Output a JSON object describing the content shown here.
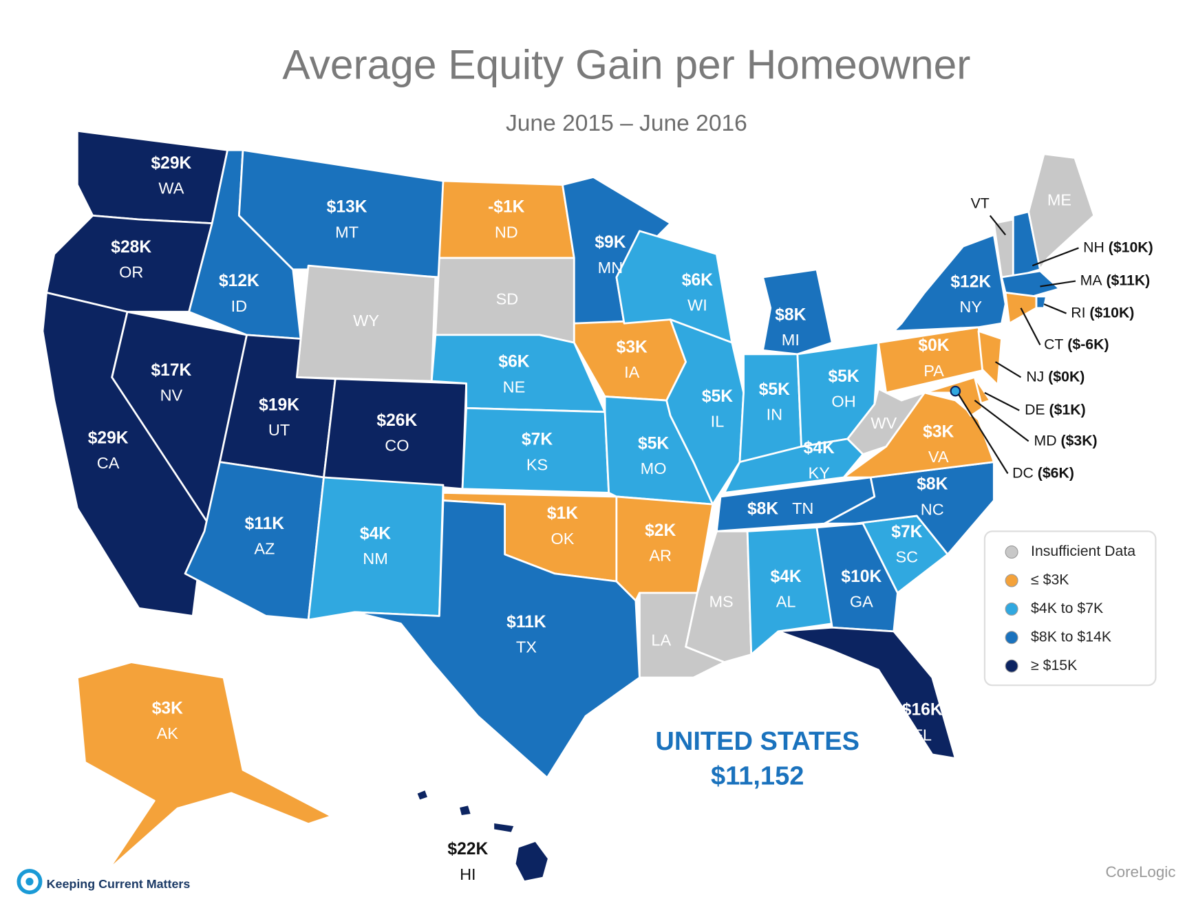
{
  "title": "Average Equity Gain per Homeowner",
  "subtitle": "June 2015 – June 2016",
  "states": [
    {
      "code": "WA",
      "value": "$29K",
      "color": "#0c2461"
    },
    {
      "code": "OR",
      "value": "$28K",
      "color": "#0c2461"
    },
    {
      "code": "CA",
      "value": "$29K",
      "color": "#0c2461"
    },
    {
      "code": "NV",
      "value": "$17K",
      "color": "#0c2461"
    },
    {
      "code": "ID",
      "value": "$12K",
      "color": "#1a72bd"
    },
    {
      "code": "MT",
      "value": "$13K",
      "color": "#1a72bd"
    },
    {
      "code": "WY",
      "color": "#c8c8c8"
    },
    {
      "code": "UT",
      "value": "$19K",
      "color": "#0c2461"
    },
    {
      "code": "CO",
      "value": "$26K",
      "color": "#0c2461"
    },
    {
      "code": "AZ",
      "value": "$11K",
      "color": "#1a72bd"
    },
    {
      "code": "NM",
      "value": "$4K",
      "color": "#30a8e0"
    },
    {
      "code": "ND",
      "value": "-$1K",
      "color": "#f4a23a"
    },
    {
      "code": "SD",
      "color": "#c8c8c8"
    },
    {
      "code": "NE",
      "value": "$6K",
      "color": "#30a8e0"
    },
    {
      "code": "KS",
      "value": "$7K",
      "color": "#30a8e0"
    },
    {
      "code": "OK",
      "value": "$1K",
      "color": "#f4a23a"
    },
    {
      "code": "TX",
      "value": "$11K",
      "color": "#1a72bd"
    },
    {
      "code": "MN",
      "value": "$9K",
      "color": "#1a72bd"
    },
    {
      "code": "IA",
      "value": "$3K",
      "color": "#f4a23a"
    },
    {
      "code": "MO",
      "value": "$5K",
      "color": "#30a8e0"
    },
    {
      "code": "AR",
      "value": "$2K",
      "color": "#f4a23a"
    },
    {
      "code": "LA",
      "color": "#c8c8c8"
    },
    {
      "code": "MS",
      "color": "#c8c8c8"
    },
    {
      "code": "WI",
      "value": "$6K",
      "color": "#30a8e0"
    },
    {
      "code": "IL",
      "value": "$5K",
      "color": "#30a8e0"
    },
    {
      "code": "MI",
      "value": "$8K",
      "color": "#1a72bd"
    },
    {
      "code": "IN",
      "value": "$5K",
      "color": "#30a8e0"
    },
    {
      "code": "OH",
      "value": "$5K",
      "color": "#30a8e0"
    },
    {
      "code": "KY",
      "value": "$4K",
      "color": "#30a8e0"
    },
    {
      "code": "TN",
      "value": "$8K",
      "color": "#1a72bd"
    },
    {
      "code": "AL",
      "value": "$4K",
      "color": "#30a8e0"
    },
    {
      "code": "GA",
      "value": "$10K",
      "color": "#1a72bd"
    },
    {
      "code": "FL",
      "value": "$16K",
      "color": "#0c2461"
    },
    {
      "code": "SC",
      "value": "$7K",
      "color": "#30a8e0"
    },
    {
      "code": "NC",
      "value": "$8K",
      "color": "#1a72bd"
    },
    {
      "code": "VA",
      "value": "$3K",
      "color": "#f4a23a"
    },
    {
      "code": "WV",
      "color": "#c8c8c8"
    },
    {
      "code": "PA",
      "value": "$0K",
      "color": "#f4a23a"
    },
    {
      "code": "NY",
      "value": "$12K",
      "color": "#1a72bd"
    },
    {
      "code": "NJ",
      "value": "($0K)",
      "color": "#f4a23a"
    },
    {
      "code": "DE",
      "value": "($1K)",
      "color": "#f4a23a"
    },
    {
      "code": "MD",
      "value": "($3K)",
      "color": "#f4a23a"
    },
    {
      "code": "DC",
      "value": "($6K)",
      "color": "#30a8e0"
    },
    {
      "code": "VT",
      "color": "#c8c8c8"
    },
    {
      "code": "NH",
      "value": "($10K)",
      "color": "#1a72bd"
    },
    {
      "code": "ME",
      "color": "#c8c8c8"
    },
    {
      "code": "MA",
      "value": "($11K)",
      "color": "#1a72bd"
    },
    {
      "code": "RI",
      "value": "($10K)",
      "color": "#1a72bd"
    },
    {
      "code": "CT",
      "value": "($-6K)",
      "color": "#f4a23a"
    },
    {
      "code": "AK",
      "value": "$3K",
      "color": "#f4a23a"
    },
    {
      "code": "HI",
      "value": "$22K",
      "color": "#0c2461"
    }
  ],
  "legend": [
    {
      "label": "Insufficient Data",
      "color": "#c8c8c8"
    },
    {
      "label": "≤ $3K",
      "color": "#f4a23a"
    },
    {
      "label": "$4K to $7K",
      "color": "#30a8e0"
    },
    {
      "label": "$8K to $14K",
      "color": "#1a72bd"
    },
    {
      "label": "≥ $15K",
      "color": "#0c2461"
    }
  ],
  "summary": {
    "label": "UNITED STATES",
    "value": "$11,152"
  },
  "source": "CoreLogic",
  "brand": "Keeping Current Matters"
}
